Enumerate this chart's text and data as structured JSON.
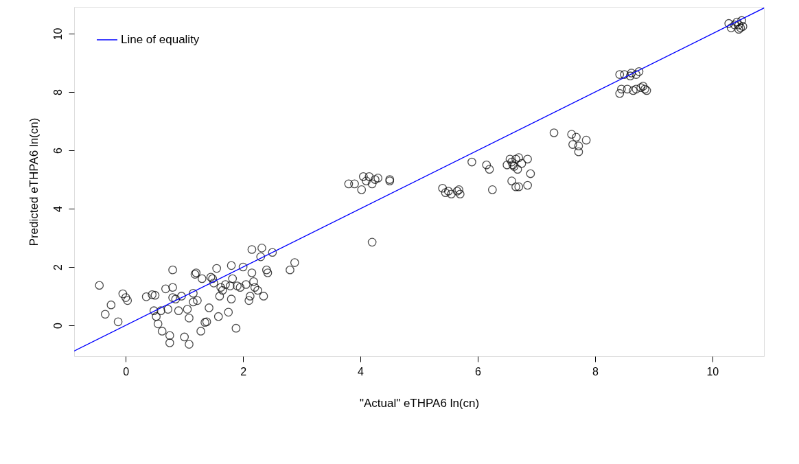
{
  "chart_data": {
    "type": "scatter",
    "xlabel": "\"Actual\" eTHPA6 ln(cn)",
    "ylabel": "Predicted eTHPA6 ln(cn)",
    "xlim": [
      -0.88,
      10.88
    ],
    "ylim": [
      -1.06,
      10.92
    ],
    "xticks": [
      0,
      2,
      4,
      6,
      8,
      10
    ],
    "yticks": [
      0,
      2,
      4,
      6,
      8,
      10
    ],
    "grid": false,
    "legend": "top left",
    "series": [
      {
        "marker": "circle",
        "color": "#000000",
        "x": [
          -0.45,
          -0.35,
          -0.25,
          -0.13,
          -0.05,
          0,
          0.03,
          0.35,
          0.45,
          0.5,
          0.48,
          0.52,
          0.55,
          0.6,
          0.62,
          0.68,
          0.72,
          0.75,
          0.75,
          0.8,
          0.8,
          0.8,
          0.85,
          0.9,
          0.95,
          1.0,
          1.05,
          1.08,
          1.08,
          1.15,
          1.15,
          1.18,
          1.2,
          1.22,
          1.28,
          1.3,
          1.35,
          1.38,
          1.42,
          1.45,
          1.48,
          1.5,
          1.55,
          1.58,
          1.6,
          1.62,
          1.65,
          1.7,
          1.75,
          1.78,
          1.8,
          1.8,
          1.82,
          1.88,
          1.9,
          1.95,
          2.0,
          2.05,
          2.1,
          2.12,
          2.15,
          2.15,
          2.18,
          2.2,
          2.25,
          2.3,
          2.32,
          2.35,
          2.4,
          2.42,
          2.5,
          2.8,
          2.88,
          3.8,
          3.9,
          4.02,
          4.05,
          4.1,
          4.15,
          4.2,
          4.25,
          4.3,
          4.5,
          4.5,
          4.2,
          5.4,
          5.45,
          5.5,
          5.55,
          5.65,
          5.68,
          5.7,
          5.9,
          6.15,
          6.2,
          6.25,
          6.5,
          6.55,
          6.58,
          6.6,
          6.62,
          6.65,
          6.68,
          6.7,
          6.75,
          6.58,
          6.65,
          6.7,
          6.85,
          6.9,
          6.85,
          7.3,
          7.6,
          7.62,
          7.68,
          7.72,
          7.72,
          7.85,
          8.42,
          8.5,
          8.6,
          8.62,
          8.7,
          8.75,
          8.42,
          8.45,
          8.55,
          8.65,
          8.7,
          8.78,
          8.82,
          8.85,
          8.88,
          10.28,
          10.32,
          10.38,
          10.42,
          10.45,
          10.48,
          10.5,
          10.52,
          10.45
        ],
        "values": [
          1.37,
          0.38,
          0.7,
          0.12,
          1.08,
          0.95,
          0.85,
          0.98,
          1.05,
          1.03,
          0.5,
          0.3,
          0.05,
          0.5,
          -0.2,
          1.25,
          0.55,
          -0.35,
          -0.6,
          1.9,
          1.3,
          0.95,
          0.9,
          0.5,
          1.0,
          -0.4,
          0.55,
          0.25,
          -0.65,
          1.1,
          0.8,
          1.75,
          1.8,
          0.85,
          -0.2,
          1.6,
          0.1,
          0.12,
          0.6,
          1.65,
          1.6,
          1.45,
          1.95,
          0.3,
          1.0,
          1.3,
          1.2,
          1.4,
          0.45,
          1.35,
          2.05,
          0.9,
          1.6,
          -0.1,
          1.35,
          1.3,
          2.0,
          1.4,
          0.85,
          1.0,
          1.8,
          2.6,
          1.5,
          1.3,
          1.2,
          2.35,
          2.65,
          1.0,
          1.9,
          1.8,
          2.5,
          1.9,
          2.15,
          4.85,
          4.85,
          4.65,
          5.1,
          4.95,
          5.1,
          4.85,
          5.0,
          5.05,
          4.95,
          5.0,
          2.85,
          4.7,
          4.55,
          4.6,
          4.5,
          4.6,
          4.65,
          4.5,
          5.6,
          5.5,
          5.35,
          4.65,
          5.5,
          5.7,
          5.6,
          5.5,
          5.45,
          5.7,
          5.35,
          5.75,
          5.55,
          4.95,
          4.75,
          4.75,
          5.7,
          5.2,
          4.8,
          6.6,
          6.55,
          6.2,
          6.45,
          6.15,
          5.95,
          6.35,
          8.6,
          8.6,
          8.55,
          8.65,
          8.6,
          8.7,
          7.95,
          8.1,
          8.1,
          8.05,
          8.1,
          8.15,
          8.2,
          8.1,
          8.05,
          10.35,
          10.2,
          10.3,
          10.4,
          10.3,
          10.2,
          10.45,
          10.25,
          10.15
        ]
      },
      {
        "type": "line",
        "name": "Line of equality",
        "color": "#0000ff",
        "x": [
          -0.88,
          10.88
        ],
        "values": [
          -0.88,
          10.88
        ]
      }
    ]
  }
}
